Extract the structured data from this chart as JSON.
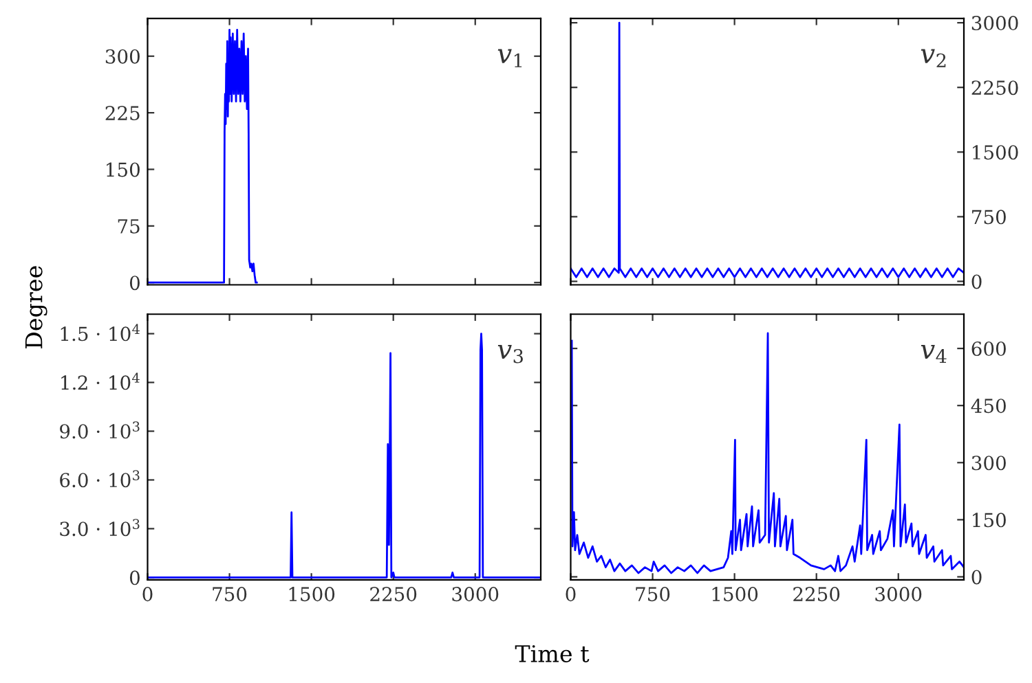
{
  "chart_data": [
    {
      "type": "line",
      "ylabel": "Degree",
      "annotations": [
        "v$_{1}$"
      ],
      "xlim": [
        0,
        3600
      ],
      "xticks": [
        0,
        750,
        1500,
        2250,
        3000
      ],
      "ylim": [
        -3,
        350
      ],
      "yticks": [
        0,
        75,
        150,
        225,
        300
      ],
      "tick_labels": "y",
      "grid": false,
      "legend": false,
      "series": [
        {
          "color": "#0000ff",
          "x": [
            0,
            700,
            705,
            710,
            715,
            720,
            725,
            730,
            735,
            740,
            745,
            750,
            755,
            760,
            770,
            780,
            790,
            800,
            810,
            820,
            830,
            840,
            850,
            860,
            870,
            880,
            890,
            900,
            910,
            920,
            925,
            930,
            940,
            950,
            960,
            970,
            980,
            990,
            1000
          ],
          "values": [
            0,
            0,
            200,
            250,
            210,
            290,
            230,
            320,
            220,
            300,
            240,
            335,
            250,
            325,
            240,
            330,
            250,
            320,
            240,
            335,
            250,
            310,
            240,
            320,
            250,
            330,
            240,
            300,
            230,
            310,
            200,
            30,
            20,
            25,
            15,
            25,
            10,
            0,
            0
          ]
        }
      ]
    },
    {
      "type": "line",
      "annotations": [
        "v$_{2}$"
      ],
      "xlim": [
        0,
        3600
      ],
      "xticks": [
        0,
        750,
        1500,
        2250,
        3000
      ],
      "ylim": [
        -40,
        3050
      ],
      "yticks": [
        0,
        750,
        1500,
        2250,
        3000
      ],
      "tick_labels": "y",
      "grid": false,
      "legend": false,
      "series": [
        {
          "color": "#0000ff",
          "x": [
            0,
            50,
            100,
            150,
            200,
            250,
            300,
            350,
            400,
            440,
            445,
            450,
            500,
            550,
            600,
            650,
            700,
            750,
            800,
            850,
            900,
            950,
            1000,
            1050,
            1100,
            1150,
            1200,
            1250,
            1300,
            1350,
            1400,
            1450,
            1500,
            1550,
            1600,
            1650,
            1700,
            1750,
            1800,
            1850,
            1900,
            1950,
            2000,
            2050,
            2100,
            2150,
            2200,
            2250,
            2300,
            2350,
            2400,
            2450,
            2500,
            2550,
            2600,
            2650,
            2700,
            2750,
            2800,
            2850,
            2900,
            2950,
            3000,
            3050,
            3100,
            3150,
            3200,
            3250,
            3300,
            3350,
            3400,
            3450,
            3500,
            3550,
            3600
          ],
          "values": [
            150,
            50,
            150,
            50,
            150,
            50,
            150,
            50,
            150,
            100,
            3000,
            150,
            50,
            150,
            50,
            150,
            50,
            150,
            50,
            150,
            50,
            150,
            50,
            150,
            50,
            150,
            50,
            150,
            50,
            150,
            50,
            150,
            50,
            150,
            50,
            150,
            50,
            150,
            50,
            150,
            50,
            150,
            50,
            150,
            50,
            150,
            50,
            150,
            50,
            150,
            50,
            150,
            50,
            150,
            50,
            150,
            50,
            150,
            50,
            150,
            50,
            150,
            50,
            150,
            50,
            150,
            50,
            150,
            50,
            150,
            50,
            150,
            50,
            150,
            100
          ]
        }
      ]
    },
    {
      "type": "line",
      "xlabel": "Time t",
      "annotations": [
        "v$_{3}$"
      ],
      "xlim": [
        0,
        3600
      ],
      "xticks": [
        0,
        750,
        1500,
        2250,
        3000
      ],
      "ylim": [
        -150,
        16200
      ],
      "yticks": [
        0,
        {
          "value": 3000,
          "label": "3.0 · 10$^{3}$"
        },
        {
          "value": 6000,
          "label": "6.0 · 10$^{3}$"
        },
        {
          "value": 9000,
          "label": "9.0 · 10$^{3}$"
        },
        {
          "value": 12000,
          "label": "1.2 · 10$^{4}$"
        },
        {
          "value": 15000,
          "label": "1.5 · 10$^{4}$"
        }
      ],
      "grid": false,
      "legend": false,
      "series": [
        {
          "color": "#0000ff",
          "x": [
            0,
            1310,
            1318,
            1326,
            2190,
            2200,
            2210,
            2218,
            2224,
            2232,
            2250,
            2260,
            2780,
            2792,
            2804,
            3040,
            3048,
            3055,
            3062,
            3070,
            3600
          ],
          "values": [
            0,
            0,
            4000,
            0,
            0,
            8200,
            2000,
            8000,
            13800,
            0,
            300,
            0,
            0,
            300,
            0,
            0,
            14000,
            15000,
            14000,
            0,
            0
          ]
        }
      ]
    },
    {
      "type": "line",
      "annotations": [
        "v$_{4}$"
      ],
      "xlim": [
        0,
        3600
      ],
      "xticks": [
        0,
        750,
        1500,
        2250,
        3000
      ],
      "ylim": [
        -8,
        690
      ],
      "yticks": [
        0,
        150,
        300,
        450,
        600
      ],
      "grid": false,
      "legend": false,
      "series": [
        {
          "color": "#0000ff",
          "x": [
            10,
            16,
            30,
            40,
            60,
            80,
            120,
            160,
            200,
            240,
            280,
            320,
            360,
            400,
            450,
            500,
            560,
            620,
            680,
            740,
            760,
            800,
            860,
            920,
            980,
            1040,
            1100,
            1160,
            1220,
            1280,
            1340,
            1400,
            1440,
            1470,
            1480,
            1505,
            1510,
            1550,
            1560,
            1610,
            1620,
            1660,
            1670,
            1720,
            1730,
            1780,
            1805,
            1815,
            1860,
            1870,
            1910,
            1920,
            1970,
            1980,
            2030,
            2040,
            2100,
            2150,
            2200,
            2260,
            2320,
            2380,
            2420,
            2450,
            2470,
            2520,
            2580,
            2600,
            2650,
            2660,
            2707,
            2715,
            2760,
            2770,
            2830,
            2840,
            2900,
            2950,
            2960,
            3010,
            3020,
            3060,
            3070,
            3120,
            3130,
            3180,
            3190,
            3250,
            3260,
            3320,
            3330,
            3400,
            3410,
            3480,
            3490,
            3560,
            3600
          ],
          "values": [
            620,
            80,
            170,
            70,
            110,
            60,
            90,
            50,
            80,
            40,
            55,
            25,
            45,
            15,
            35,
            15,
            30,
            10,
            25,
            15,
            40,
            15,
            30,
            10,
            25,
            15,
            30,
            10,
            30,
            15,
            20,
            25,
            50,
            120,
            60,
            360,
            70,
            150,
            70,
            165,
            80,
            185,
            80,
            175,
            90,
            110,
            640,
            90,
            220,
            80,
            205,
            80,
            160,
            70,
            150,
            60,
            50,
            40,
            30,
            25,
            20,
            30,
            15,
            55,
            15,
            30,
            80,
            40,
            135,
            60,
            360,
            70,
            110,
            60,
            120,
            70,
            100,
            175,
            80,
            400,
            80,
            190,
            90,
            140,
            80,
            120,
            60,
            110,
            50,
            80,
            40,
            70,
            30,
            55,
            20,
            40,
            25
          ]
        }
      ]
    }
  ]
}
